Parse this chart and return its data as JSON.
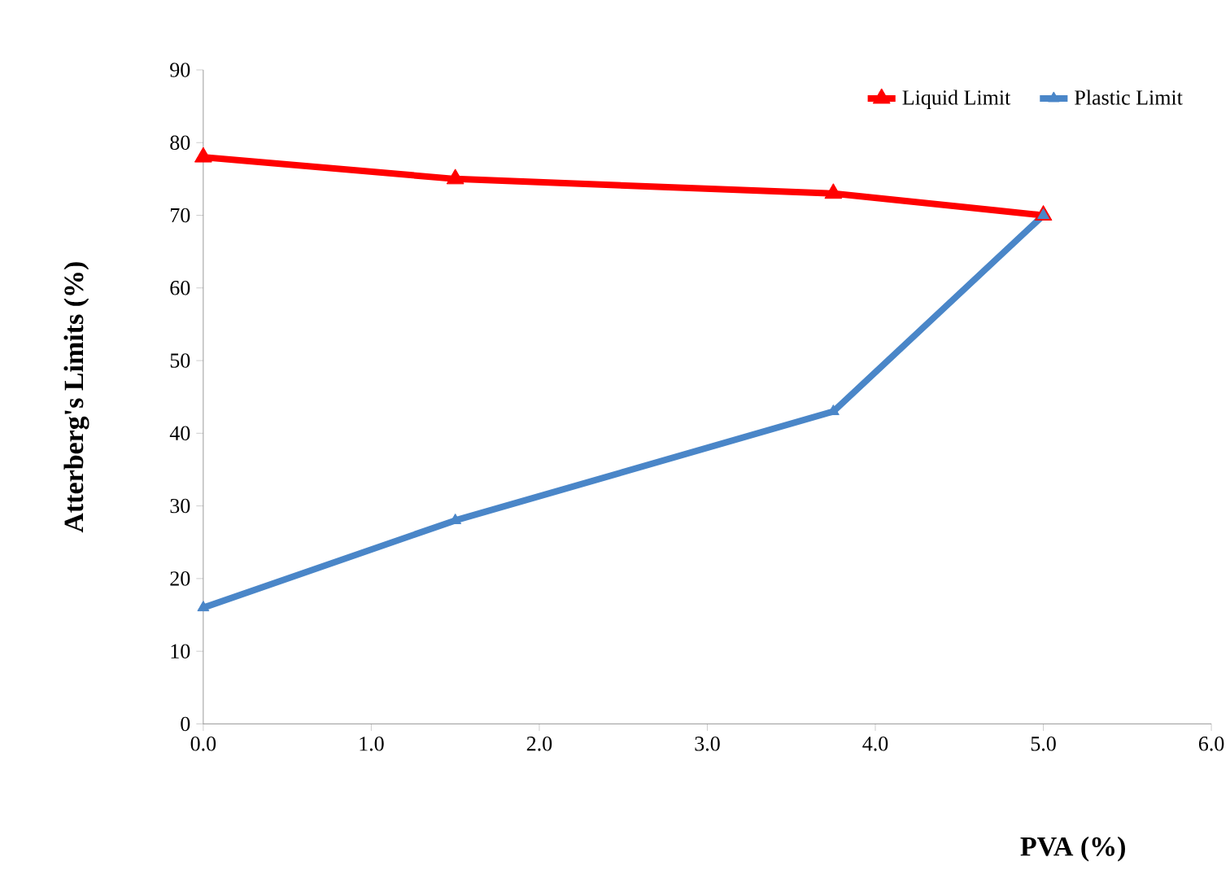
{
  "chart_data": {
    "type": "line",
    "xlabel": "PVA (%)",
    "ylabel": "Atterberg's Limits (%)",
    "x": [
      0,
      1.5,
      3.75,
      5
    ],
    "series": [
      {
        "name": "Liquid Limit",
        "color": "#ff0000",
        "values": [
          78,
          75,
          73,
          70
        ]
      },
      {
        "name": "Plastic Limit",
        "color": "#4a86c8",
        "values": [
          16,
          28,
          43,
          70
        ]
      }
    ],
    "xlim": [
      0,
      6
    ],
    "xticks": [
      {
        "value": 0,
        "label": "0.0"
      },
      {
        "value": 1,
        "label": "1.0"
      },
      {
        "value": 2,
        "label": "2.0"
      },
      {
        "value": 3,
        "label": "3.0"
      },
      {
        "value": 4,
        "label": "4.0"
      },
      {
        "value": 5,
        "label": "5.0"
      },
      {
        "value": 6,
        "label": "6.0"
      }
    ],
    "ylim": [
      0,
      90
    ],
    "yticks": [
      0,
      10,
      20,
      30,
      40,
      50,
      60,
      70,
      80,
      90
    ],
    "legend": "top right",
    "marker": "triangle",
    "line_style": "solid",
    "grid": false
  }
}
